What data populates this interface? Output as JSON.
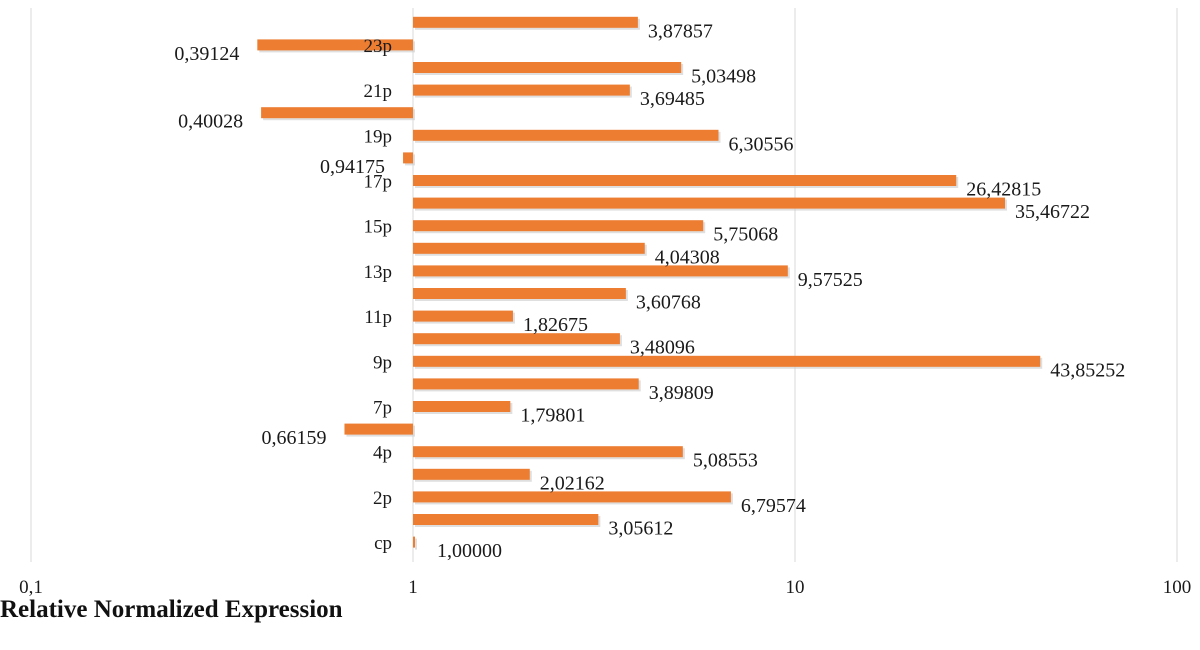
{
  "chart_data": {
    "type": "bar",
    "orientation": "horizontal",
    "x_scale": "log",
    "xlim": [
      0.1,
      100
    ],
    "x_ticks": [
      "0,1",
      "1",
      "10",
      "100"
    ],
    "x_tick_values": [
      0.1,
      1,
      10,
      100
    ],
    "xlabel": "Relative Normalized Expression",
    "ylabel": "",
    "grid": "vertical",
    "bar_color": "#ED7D31",
    "categories": [
      "cp",
      "",
      "2p",
      "",
      "4p",
      "",
      "7p",
      "",
      "9p",
      "",
      "11p",
      "",
      "13p",
      "",
      "15p",
      "",
      "17p",
      "",
      "19p",
      "",
      "21p",
      "",
      "23p",
      ""
    ],
    "values": [
      1.0,
      3.05612,
      6.79574,
      2.02162,
      5.08553,
      0.66159,
      1.79801,
      3.89809,
      43.85252,
      3.48096,
      1.82675,
      3.60768,
      9.57525,
      4.04308,
      5.75068,
      35.46722,
      26.42815,
      0.94175,
      6.30556,
      0.40028,
      3.69485,
      5.03498,
      0.39124,
      3.87857
    ],
    "data_labels": [
      "1,00000",
      "3,05612",
      "6,79574",
      "2,02162",
      "5,08553",
      "0,66159",
      "1,79801",
      "3,89809",
      "43,85252",
      "3,48096",
      "1,82675",
      "3,60768",
      "9,57525",
      "4,04308",
      "5,75068",
      "35,46722",
      "26,42815",
      "0,94175",
      "6,30556",
      "0,40028",
      "3,69485",
      "5,03498",
      "0,39124",
      "3,87857"
    ]
  }
}
